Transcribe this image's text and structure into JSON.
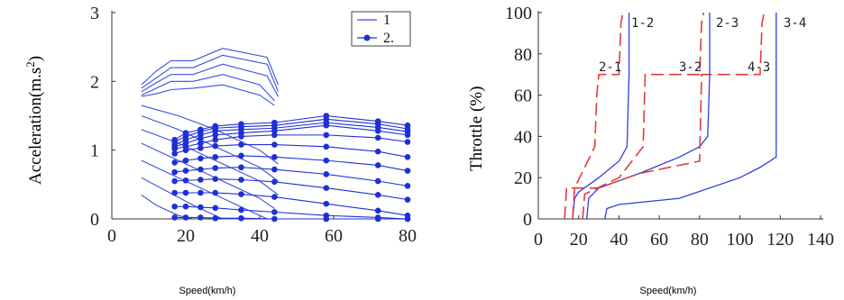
{
  "chart_data": [
    {
      "type": "line",
      "xlabel": "Speed(km/h)",
      "ylabel": "Acceleration(m.s2)",
      "xlim": [
        0,
        80
      ],
      "ylim": [
        0,
        3
      ],
      "xticks": [
        "0",
        "20",
        "40",
        "60",
        "80"
      ],
      "yticks": [
        "0",
        "1",
        "2",
        "3"
      ],
      "legend": [
        {
          "label": "1",
          "style": "line",
          "color": "#3a4fe0"
        },
        {
          "label": "2.",
          "style": "line-dot",
          "color": "#1f2fd6"
        }
      ],
      "legend_position": "top-right",
      "series": [
        {
          "legend": "1",
          "x": [
            8,
            12,
            16,
            22,
            30,
            42,
            45
          ],
          "y": [
            1.95,
            2.15,
            2.3,
            2.3,
            2.48,
            2.35,
            1.95
          ]
        },
        {
          "legend": "1",
          "x": [
            8,
            12,
            16,
            22,
            30,
            42,
            45
          ],
          "y": [
            1.9,
            2.05,
            2.2,
            2.2,
            2.38,
            2.25,
            1.85
          ]
        },
        {
          "legend": "1",
          "x": [
            8,
            12,
            16,
            22,
            30,
            42,
            45
          ],
          "y": [
            1.85,
            1.98,
            2.1,
            2.1,
            2.25,
            2.08,
            1.78
          ]
        },
        {
          "legend": "1",
          "x": [
            8,
            12,
            16,
            22,
            30,
            40,
            44
          ],
          "y": [
            1.8,
            1.9,
            2.0,
            2.0,
            2.1,
            1.95,
            1.72
          ]
        },
        {
          "legend": "1",
          "x": [
            8,
            12,
            16,
            22,
            30,
            40,
            44
          ],
          "y": [
            1.78,
            1.82,
            1.88,
            1.9,
            1.95,
            1.8,
            1.65
          ]
        },
        {
          "legend": "1",
          "x": [
            8,
            18,
            28,
            40,
            45
          ],
          "y": [
            1.65,
            1.5,
            1.3,
            1.0,
            0.8
          ]
        },
        {
          "legend": "1",
          "x": [
            8,
            18,
            28,
            40,
            45
          ],
          "y": [
            1.5,
            1.3,
            1.05,
            0.75,
            0.55
          ]
        },
        {
          "legend": "1",
          "x": [
            8,
            18,
            28,
            40,
            45
          ],
          "y": [
            1.3,
            1.1,
            0.85,
            0.55,
            0.35
          ]
        },
        {
          "legend": "1",
          "x": [
            8,
            18,
            28,
            40,
            44
          ],
          "y": [
            1.1,
            0.85,
            0.6,
            0.3,
            0.15
          ]
        },
        {
          "legend": "1",
          "x": [
            8,
            18,
            28,
            38,
            42
          ],
          "y": [
            0.85,
            0.6,
            0.35,
            0.1,
            0.0
          ]
        },
        {
          "legend": "1",
          "x": [
            8,
            15,
            22,
            30,
            34
          ],
          "y": [
            0.6,
            0.4,
            0.2,
            0.0,
            0.0
          ]
        },
        {
          "legend": "1",
          "x": [
            8,
            12,
            18,
            22
          ],
          "y": [
            0.35,
            0.2,
            0.05,
            0.0
          ]
        },
        {
          "legend": "2.",
          "x": [
            17,
            20,
            24,
            28,
            35,
            44,
            58,
            72,
            80
          ],
          "y": [
            1.15,
            1.25,
            1.3,
            1.35,
            1.38,
            1.4,
            1.5,
            1.42,
            1.36
          ]
        },
        {
          "legend": "2.",
          "x": [
            17,
            20,
            24,
            28,
            35,
            44,
            58,
            72,
            80
          ],
          "y": [
            1.12,
            1.2,
            1.27,
            1.32,
            1.34,
            1.36,
            1.45,
            1.38,
            1.31
          ]
        },
        {
          "legend": "2.",
          "x": [
            17,
            20,
            24,
            28,
            35,
            44,
            58,
            72,
            80
          ],
          "y": [
            1.08,
            1.15,
            1.22,
            1.28,
            1.3,
            1.32,
            1.4,
            1.33,
            1.27
          ]
        },
        {
          "legend": "2.",
          "x": [
            17,
            20,
            24,
            28,
            35,
            44,
            58,
            72,
            80
          ],
          "y": [
            1.05,
            1.1,
            1.17,
            1.22,
            1.25,
            1.28,
            1.36,
            1.28,
            1.22
          ]
        },
        {
          "legend": "2.",
          "x": [
            17,
            20,
            24,
            28,
            35,
            44,
            58,
            72,
            80
          ],
          "y": [
            1.02,
            1.05,
            1.1,
            1.15,
            1.2,
            1.22,
            1.22,
            1.18,
            1.12
          ]
        },
        {
          "legend": "2.",
          "x": [
            17,
            20,
            24,
            28,
            35,
            44,
            58,
            72,
            80
          ],
          "y": [
            0.95,
            1.0,
            1.03,
            1.06,
            1.08,
            1.08,
            1.05,
            0.98,
            0.9
          ]
        },
        {
          "legend": "2.",
          "x": [
            17,
            20,
            24,
            28,
            35,
            44,
            58,
            72,
            80
          ],
          "y": [
            0.82,
            0.85,
            0.88,
            0.9,
            0.92,
            0.9,
            0.85,
            0.78,
            0.7
          ]
        },
        {
          "legend": "2.",
          "x": [
            17,
            20,
            24,
            28,
            35,
            44,
            58,
            72,
            80
          ],
          "y": [
            0.68,
            0.7,
            0.72,
            0.74,
            0.75,
            0.72,
            0.65,
            0.55,
            0.48
          ]
        },
        {
          "legend": "2.",
          "x": [
            17,
            20,
            24,
            28,
            35,
            44,
            58,
            72,
            80
          ],
          "y": [
            0.55,
            0.56,
            0.57,
            0.58,
            0.57,
            0.54,
            0.45,
            0.35,
            0.28
          ]
        },
        {
          "legend": "2.",
          "x": [
            17,
            20,
            24,
            28,
            35,
            44,
            58,
            72,
            80
          ],
          "y": [
            0.38,
            0.38,
            0.38,
            0.38,
            0.36,
            0.32,
            0.22,
            0.12,
            0.05
          ]
        },
        {
          "legend": "2.",
          "x": [
            17,
            20,
            24,
            28,
            35,
            44,
            58,
            72,
            80
          ],
          "y": [
            0.18,
            0.18,
            0.17,
            0.16,
            0.13,
            0.1,
            0.05,
            0.02,
            0.0
          ]
        },
        {
          "legend": "2.",
          "x": [
            17,
            20,
            24,
            28,
            35,
            44,
            58,
            72,
            80
          ],
          "y": [
            0.02,
            0.02,
            0.02,
            0.01,
            0.01,
            0.0,
            0.0,
            0.0,
            0.0
          ]
        }
      ]
    },
    {
      "type": "line",
      "xlabel": "Speed(km/h)",
      "ylabel": "Throttle (%)",
      "xlim": [
        0,
        140
      ],
      "ylim": [
        0,
        100
      ],
      "xticks": [
        "0",
        "20",
        "40",
        "60",
        "80",
        "100",
        "120",
        "140"
      ],
      "yticks": [
        "0",
        "20",
        "40",
        "60",
        "80",
        "100"
      ],
      "series": [
        {
          "label": "1-2",
          "color": "#2c3ee0",
          "dash": "solid",
          "x": [
            17,
            18,
            20,
            30,
            40,
            44,
            45,
            45
          ],
          "y": [
            0,
            10,
            13,
            20,
            28,
            35,
            70,
            100
          ]
        },
        {
          "label": "2-1",
          "color": "#e23b3b",
          "dash": "dashed",
          "x": [
            17,
            18,
            28,
            29,
            30,
            40,
            41,
            42
          ],
          "y": [
            0,
            15,
            35,
            60,
            70,
            70,
            95,
            100
          ]
        },
        {
          "label": "2-3",
          "color": "#2c3ee0",
          "dash": "solid",
          "x": [
            24,
            25,
            30,
            50,
            70,
            80,
            84,
            85,
            85
          ],
          "y": [
            0,
            10,
            15,
            22,
            30,
            35,
            40,
            70,
            100
          ]
        },
        {
          "label": "3-2",
          "color": "#e23b3b",
          "dash": "dashed",
          "x": [
            22,
            23,
            40,
            52,
            53,
            80,
            81,
            82
          ],
          "y": [
            0,
            12,
            20,
            35,
            70,
            70,
            95,
            100
          ]
        },
        {
          "label": "3-4",
          "color": "#2c3ee0",
          "dash": "solid",
          "x": [
            33,
            34,
            40,
            70,
            100,
            110,
            118,
            118,
            118
          ],
          "y": [
            0,
            5,
            7,
            10,
            20,
            25,
            30,
            70,
            100
          ]
        },
        {
          "label": "4-3",
          "color": "#e23b3b",
          "dash": "dashed",
          "x": [
            13,
            14,
            30,
            50,
            80,
            81,
            110,
            111,
            112
          ],
          "y": [
            0,
            15,
            15,
            22,
            28,
            70,
            70,
            95,
            100
          ]
        }
      ]
    }
  ],
  "labels": {
    "left_ylabel": "Acceleration(m.s",
    "left_ylabel_sup": "2",
    "left_ylabel_end": ")",
    "left_xlabel": "Speed(km/h)",
    "right_ylabel": "Throttle (%)",
    "right_xlabel": "Speed(km/h)"
  }
}
